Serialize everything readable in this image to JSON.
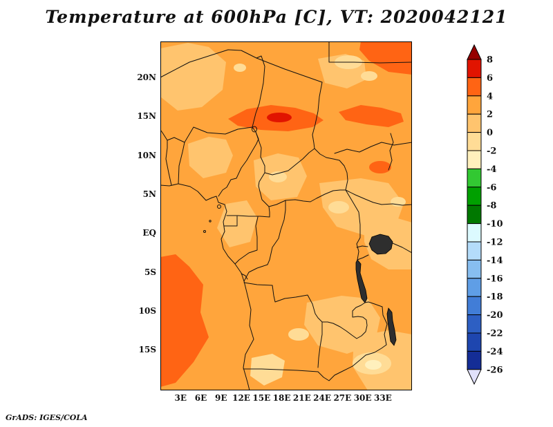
{
  "title": "Temperature at 600hPa [C], VT: 2020042121",
  "footer": "GrADS: IGES/COLA",
  "chart_data": {
    "type": "heatmap",
    "title": "Temperature at 600hPa [C], VT: 2020042121",
    "variable": "Temperature",
    "level_hPa": 600,
    "units": "C",
    "valid_time": "2020042121",
    "region": {
      "lon_min_deg_e": 0,
      "lon_max_deg_e": 37.3,
      "lat_min_deg": -20.1,
      "lat_max_deg": 24.7
    },
    "lat_ticks": [
      {
        "label": "20N",
        "deg": 20
      },
      {
        "label": "15N",
        "deg": 15
      },
      {
        "label": "10N",
        "deg": 10
      },
      {
        "label": "5N",
        "deg": 5
      },
      {
        "label": "EQ",
        "deg": 0
      },
      {
        "label": "5S",
        "deg": -5
      },
      {
        "label": "10S",
        "deg": -10
      },
      {
        "label": "15S",
        "deg": -15
      }
    ],
    "lon_ticks": [
      {
        "label": "3E",
        "deg": 3
      },
      {
        "label": "6E",
        "deg": 6
      },
      {
        "label": "9E",
        "deg": 9
      },
      {
        "label": "12E",
        "deg": 12
      },
      {
        "label": "15E",
        "deg": 15
      },
      {
        "label": "18E",
        "deg": 18
      },
      {
        "label": "21E",
        "deg": 21
      },
      {
        "label": "24E",
        "deg": 24
      },
      {
        "label": "27E",
        "deg": 27
      },
      {
        "label": "30E",
        "deg": 30
      },
      {
        "label": "33E",
        "deg": 33
      }
    ],
    "colorbar": {
      "orientation": "vertical",
      "interval": 2,
      "labels": [
        8,
        6,
        4,
        2,
        0,
        -2,
        -4,
        -6,
        -8,
        -10,
        -12,
        -14,
        -16,
        -18,
        -20,
        -22,
        -24,
        -26
      ],
      "colors_top_to_bottom": [
        "#960000",
        "#e11400",
        "#ff6414",
        "#ffa53c",
        "#ffc46e",
        "#ffdc96",
        "#fff0bd",
        "#32c832",
        "#00a000",
        "#007800",
        "#dcfaff",
        "#b4dcfa",
        "#87bef0",
        "#5f9ee6",
        "#417dd7",
        "#2d5fc3",
        "#1e46af",
        "#142d96",
        "#e1e1fa"
      ]
    },
    "field_summary": {
      "dominant_range_c": "2 to 4",
      "features": [
        "4-6 C warm band across the Sahel near 14-16N between 10E and 24E with a small 6-8 C core near 16E 15N",
        "4-6 C patches in the far northeast corner and near 27-35E around 14-16N",
        "4-6 C area over the southeast Atlantic in the bottom-left corner, roughly 0-7E and 8-18S",
        "0-2 C patches over central Nigeria, western CAR, 24-34E near the equator, Zambia and the southeast corner",
        "-2 to 0 C spots near 27E 21N, 17E 7N, 26E 3N, 20E 13S and along the bottom edge near 15E and 31E",
        "Lakes Victoria, Tanganyika and Malawi drawn dark over the shading"
      ]
    }
  }
}
